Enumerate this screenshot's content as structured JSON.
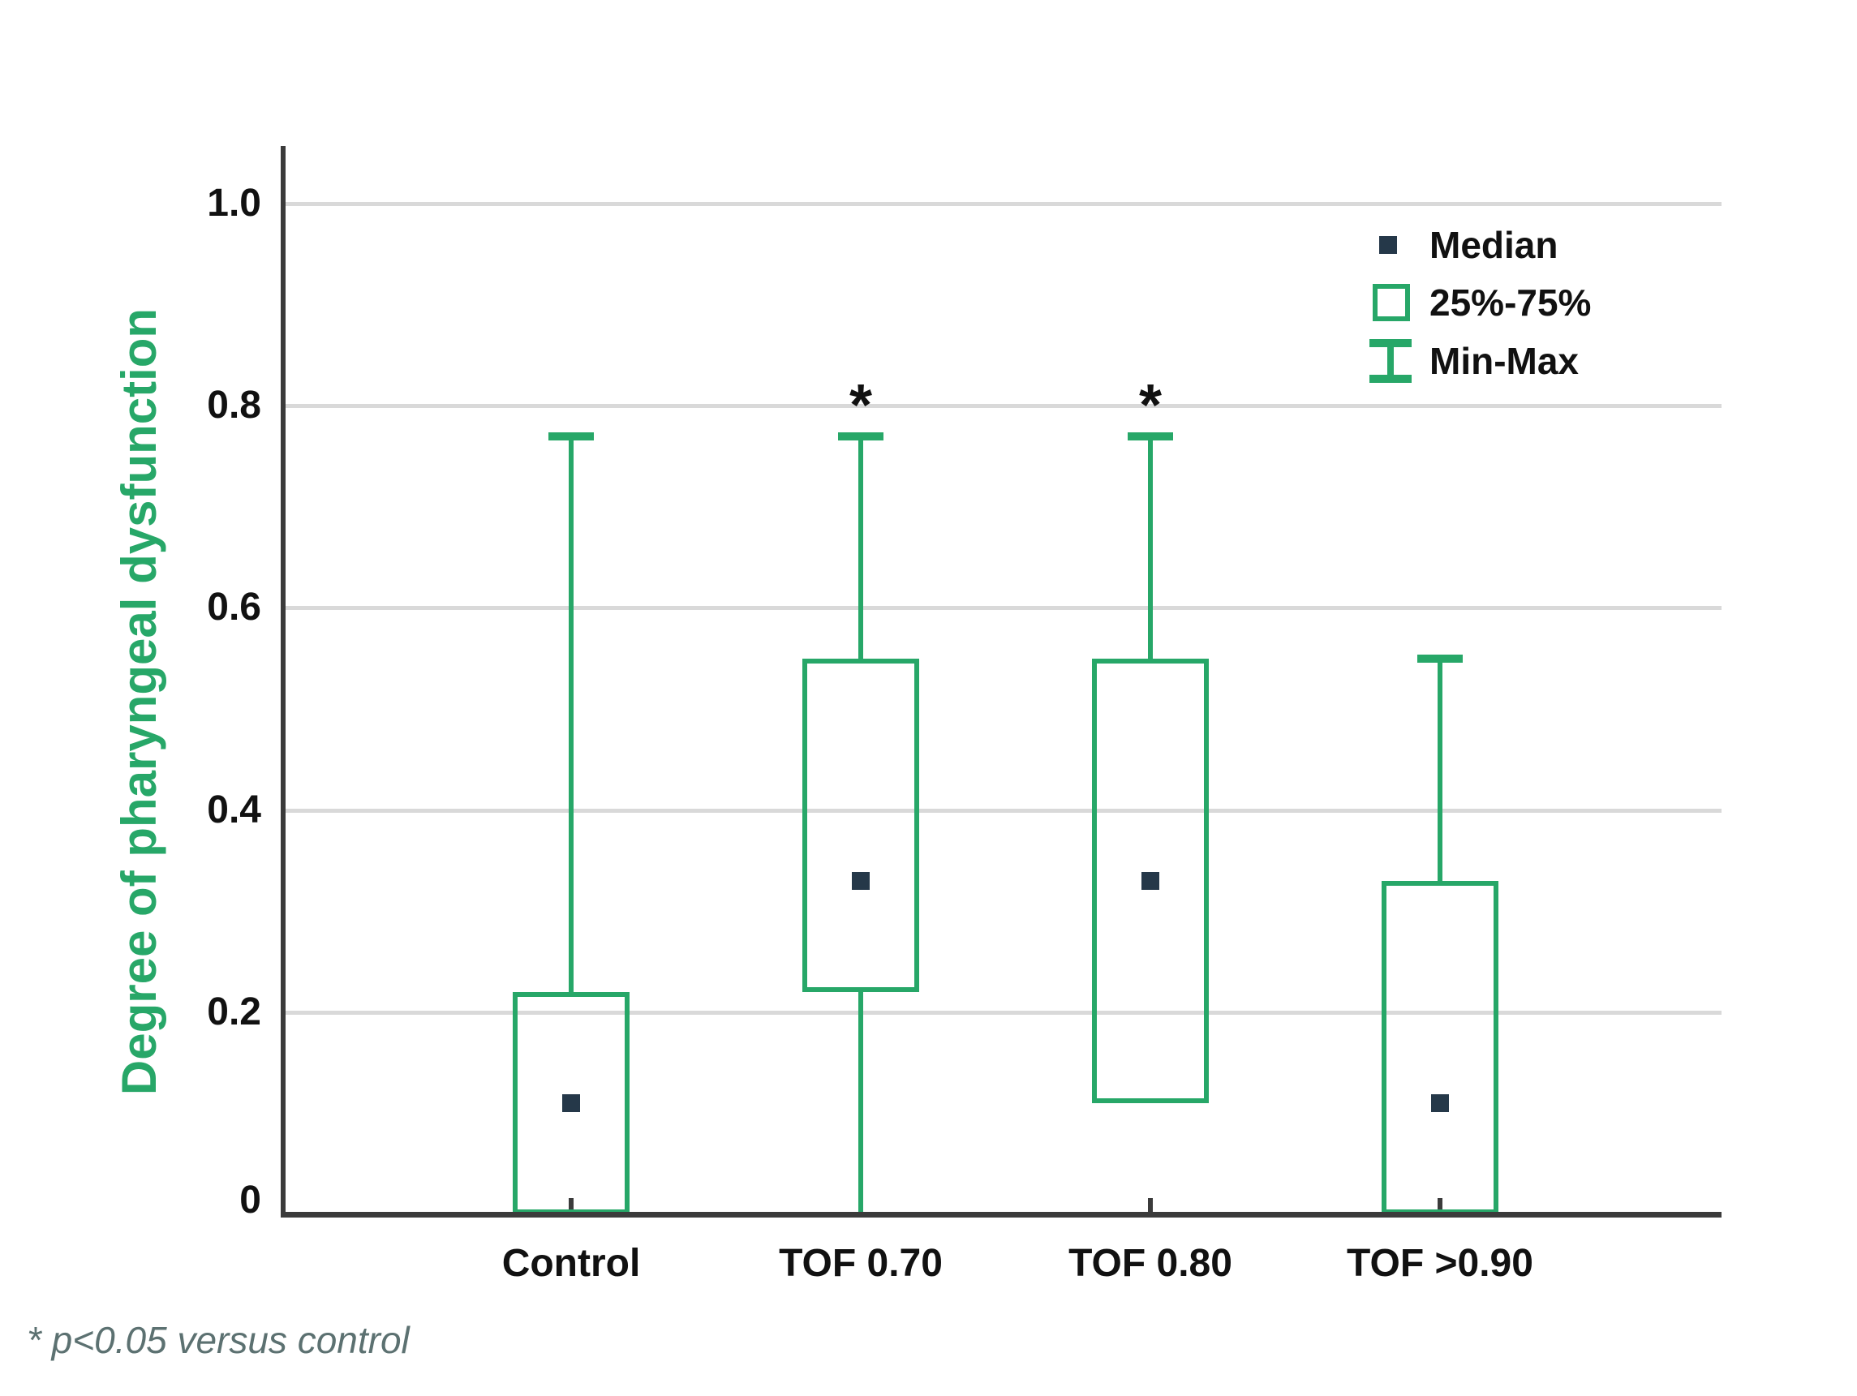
{
  "figure": {
    "background": "#ffffff"
  },
  "chart_data": {
    "type": "box",
    "title": "",
    "xlabel": "",
    "ylabel": "Degree of pharyngeal dysfunction",
    "ylim": [
      0,
      1.05
    ],
    "grid": "horizontal",
    "yticks": [
      1.0,
      0.8,
      0.6,
      0.4,
      0.2,
      0
    ],
    "ytick_labels": [
      "1.0",
      "0.8",
      "0.6",
      "0.4",
      "0.2",
      "0"
    ],
    "categories": [
      "Control",
      "TOF 0.70",
      "TOF 0.80",
      "TOF >0.90"
    ],
    "series": [
      {
        "category": "Control",
        "min": 0.0,
        "q1": 0.0,
        "median": 0.11,
        "q3": 0.22,
        "max": 0.77,
        "significant": false
      },
      {
        "category": "TOF 0.70",
        "min": 0.0,
        "q1": 0.22,
        "median": 0.33,
        "q3": 0.55,
        "max": 0.77,
        "significant": true
      },
      {
        "category": "TOF 0.80",
        "min": 0.11,
        "q1": 0.11,
        "median": 0.33,
        "q3": 0.55,
        "max": 0.77,
        "significant": true
      },
      {
        "category": "TOF >0.90",
        "min": 0.0,
        "q1": 0.0,
        "median": 0.11,
        "q3": 0.33,
        "max": 0.55,
        "significant": false
      }
    ],
    "significance_marker": "*",
    "legend": [
      {
        "marker": "median-square",
        "label": "Median"
      },
      {
        "marker": "iqr-box",
        "label": "25%-75%"
      },
      {
        "marker": "minmax-whisker",
        "label": "Min-Max"
      }
    ],
    "legend_position": "top-right",
    "footnote": "* p<0.05 versus control",
    "colors": {
      "box_green": "#27a768",
      "median_navy": "#253849",
      "axis_dark": "#3b3b3b",
      "gridline_gray": "#d9d9d9",
      "text_black": "#111111",
      "footnote_gray": "#5c7171"
    }
  }
}
